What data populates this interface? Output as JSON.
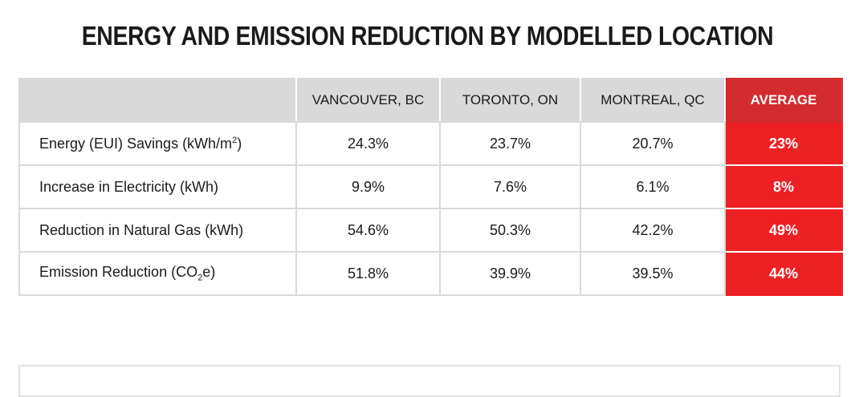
{
  "title": "ENERGY AND EMISSION REDUCTION BY MODELLED LOCATION",
  "colors": {
    "header_bg": "#d9d9d9",
    "average_header_bg": "#d42b2f",
    "average_cell_bg": "#ed2024",
    "text": "#1a1a1a"
  },
  "table": {
    "columns": [
      "",
      "VANCOUVER, BC",
      "TORONTO, ON",
      "MONTREAL, QC",
      "AVERAGE"
    ],
    "rows": [
      {
        "metric": "Energy (EUI) Savings (kWh/m",
        "metric_sup": "2",
        "metric_suffix": ")",
        "vancouver": "24.3%",
        "toronto": "23.7%",
        "montreal": "20.7%",
        "average": "23%"
      },
      {
        "metric": "Increase in Electricity (kWh)",
        "vancouver": "9.9%",
        "toronto": "7.6%",
        "montreal": "6.1%",
        "average": "8%"
      },
      {
        "metric": "Reduction in Natural Gas (kWh)",
        "vancouver": "54.6%",
        "toronto": "50.3%",
        "montreal": "42.2%",
        "average": "49%"
      },
      {
        "metric": "Emission Reduction (CO",
        "metric_sub": "2",
        "metric_suffix": "e)",
        "vancouver": "51.8%",
        "toronto": "39.9%",
        "montreal": "39.5%",
        "average": "44%"
      }
    ]
  }
}
